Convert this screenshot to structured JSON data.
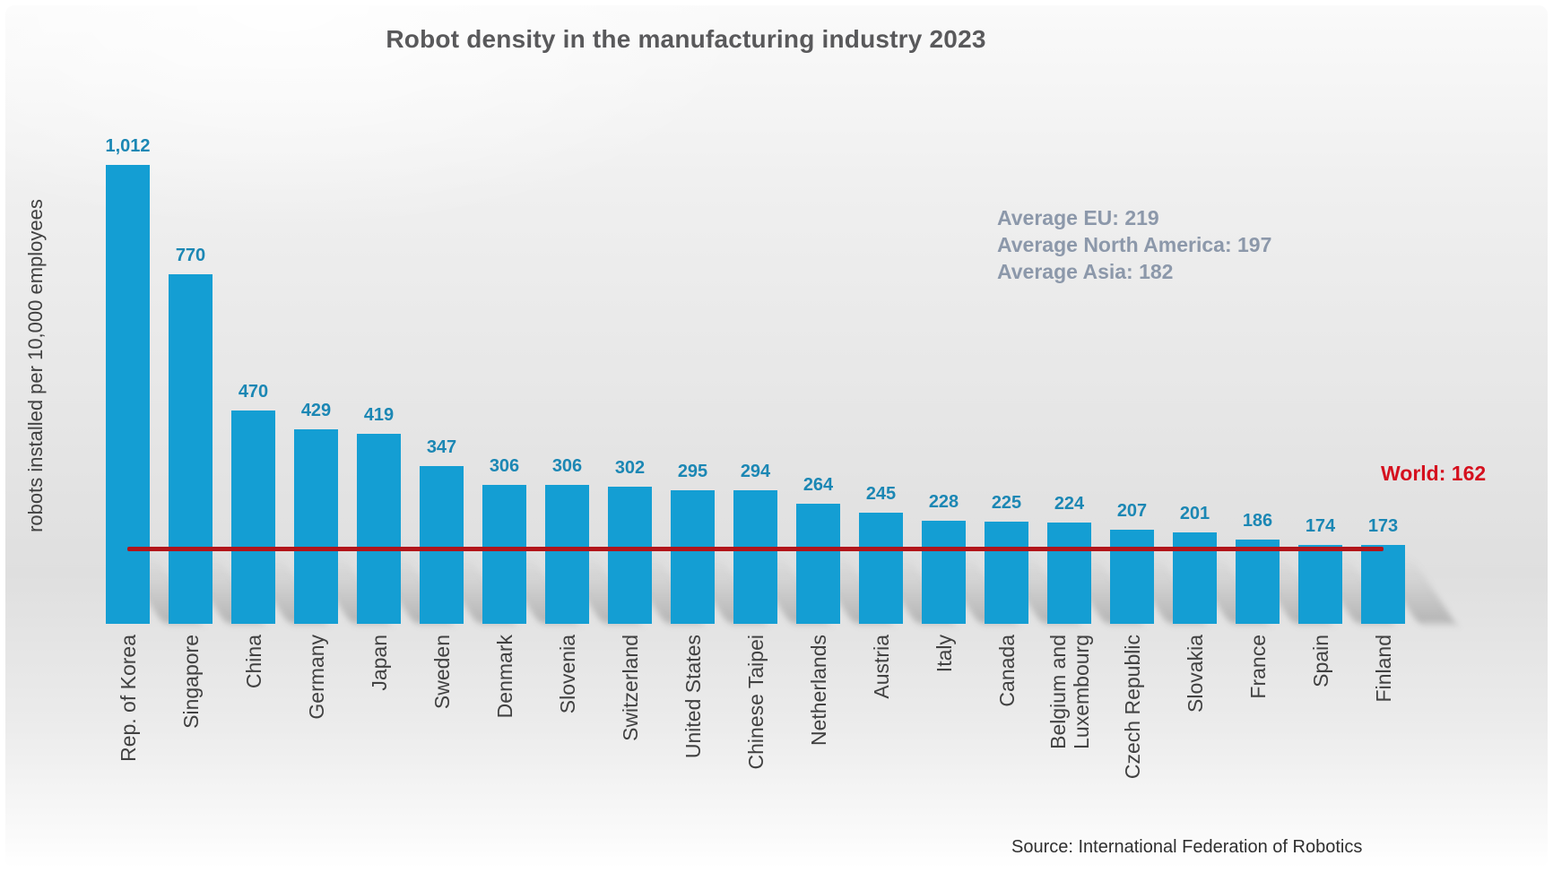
{
  "chart_data": {
    "type": "bar",
    "title": "Robot density in the manufacturing industry 2023",
    "ylabel": "robots installed per 10,000 employees",
    "categories": [
      "Rep. of Korea",
      "Singapore",
      "China",
      "Germany",
      "Japan",
      "Sweden",
      "Denmark",
      "Slovenia",
      "Switzerland",
      "United States",
      "Chinese Taipei",
      "Netherlands",
      "Austria",
      "Italy",
      "Canada",
      "Belgium and\nLuxembourg",
      "Czech Republic",
      "Slovakia",
      "France",
      "Spain",
      "Finland"
    ],
    "values": [
      1012,
      770,
      470,
      429,
      419,
      347,
      306,
      306,
      302,
      295,
      294,
      264,
      245,
      228,
      225,
      224,
      207,
      201,
      186,
      174,
      173
    ],
    "value_labels": [
      "1,012",
      "770",
      "470",
      "429",
      "419",
      "347",
      "306",
      "306",
      "302",
      "295",
      "294",
      "264",
      "245",
      "228",
      "225",
      "224",
      "207",
      "201",
      "186",
      "174",
      "173"
    ],
    "reference_line": {
      "label": "World: 162",
      "value": 162
    },
    "annotations": [
      "Average EU: 219",
      "Average North America: 197",
      "Average Asia: 182"
    ],
    "source": "Source: International Federation of Robotics",
    "ylim": [
      0,
      1100
    ],
    "grid": false,
    "legend_position": "none",
    "colors": {
      "bar": "#149ED3",
      "value_label": "#1B87B4",
      "reference_line": "#B2151A",
      "reference_text": "#D5101E",
      "annotation_text": "#8C98AA",
      "title_text": "#59595B",
      "axis_text": "#414141",
      "source_text": "#2F2F2F"
    }
  }
}
